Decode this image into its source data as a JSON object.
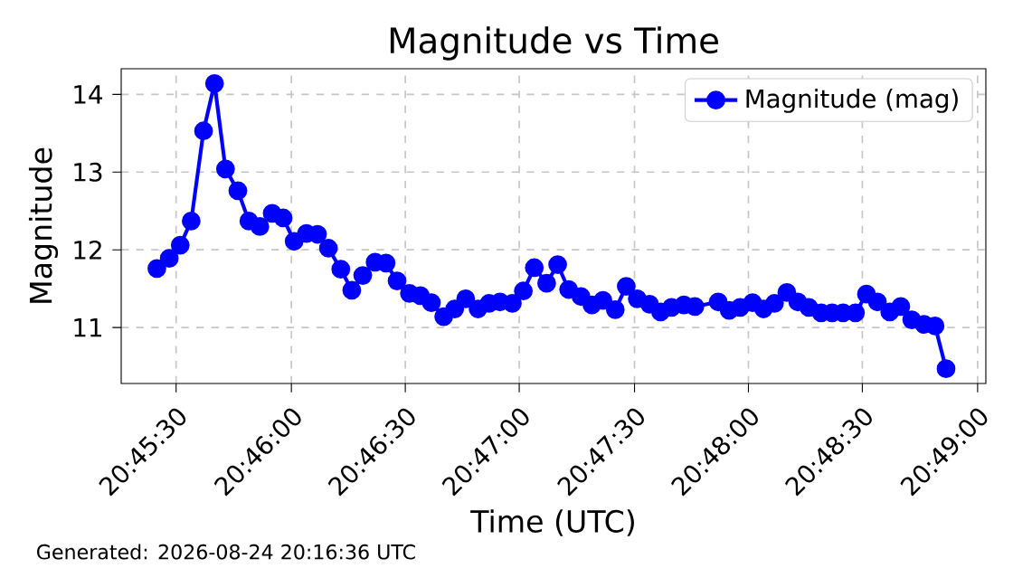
{
  "chart_data": {
    "type": "line",
    "title": "Magnitude vs Time",
    "xlabel": "Time (UTC)",
    "ylabel": "Magnitude",
    "x": [
      20.7569,
      20.7578,
      20.7586,
      20.7594,
      20.7603,
      20.7611,
      20.7619,
      20.7628,
      20.7636,
      20.7644,
      20.7653,
      20.7661,
      20.7669,
      20.7678,
      20.7686,
      20.7694,
      20.7703,
      20.7711,
      20.7719,
      20.7728,
      20.7736,
      20.7744,
      20.7753,
      20.7761,
      20.7769,
      20.7778,
      20.7786,
      20.7794,
      20.7803,
      20.7811,
      20.7819,
      20.7828,
      20.7836,
      20.7844,
      20.7853,
      20.7861,
      20.7869,
      20.7878,
      20.7886,
      20.7894,
      20.7903,
      20.7911,
      20.7919,
      20.7928,
      20.7936,
      20.7944,
      20.7953,
      20.7961,
      20.7978,
      20.7986,
      20.7994,
      20.8003,
      20.8011,
      20.8019,
      20.8028,
      20.8036,
      20.8044,
      20.8053,
      20.8061,
      20.8069,
      20.8078,
      20.8086,
      20.8094,
      20.8103,
      20.8111,
      20.8119,
      20.8128,
      20.8136,
      20.8144
    ],
    "series": [
      {
        "name": "Magnitude (mag)",
        "color": "#0000ff",
        "values": [
          11.76,
          11.89,
          12.06,
          12.37,
          13.53,
          14.14,
          13.04,
          12.76,
          12.37,
          12.3,
          12.47,
          12.41,
          12.11,
          12.21,
          12.2,
          12.02,
          11.75,
          11.48,
          11.67,
          11.84,
          11.83,
          11.6,
          11.44,
          11.41,
          11.32,
          11.14,
          11.24,
          11.37,
          11.24,
          11.31,
          11.33,
          11.31,
          11.47,
          11.77,
          11.57,
          11.81,
          11.49,
          11.4,
          11.29,
          11.35,
          11.23,
          11.53,
          11.37,
          11.3,
          11.2,
          11.26,
          11.29,
          11.27,
          11.33,
          11.22,
          11.26,
          11.32,
          11.24,
          11.31,
          11.45,
          11.33,
          11.26,
          11.19,
          11.19,
          11.19,
          11.19,
          11.43,
          11.33,
          11.2,
          11.27,
          11.1,
          11.04,
          11.02,
          10.47
        ]
      }
    ],
    "xlim": [
      20.7543,
      20.8173
    ],
    "ylim": [
      10.28,
      14.33
    ],
    "xticks": [
      {
        "value": 20.7583,
        "label": "20:45:30"
      },
      {
        "value": 20.7667,
        "label": "20:46:00"
      },
      {
        "value": 20.775,
        "label": "20:46:30"
      },
      {
        "value": 20.7833,
        "label": "20:47:00"
      },
      {
        "value": 20.7917,
        "label": "20:47:30"
      },
      {
        "value": 20.8,
        "label": "20:48:00"
      },
      {
        "value": 20.8083,
        "label": "20:48:30"
      },
      {
        "value": 20.8167,
        "label": "20:49:00"
      }
    ],
    "yticks": [
      11,
      12,
      13,
      14
    ],
    "grid": true,
    "legend": "top right",
    "marker": "circle",
    "line_style": "solid",
    "annotations": [
      "Generated: 2026-08-24 20:16:36 UTC"
    ]
  }
}
